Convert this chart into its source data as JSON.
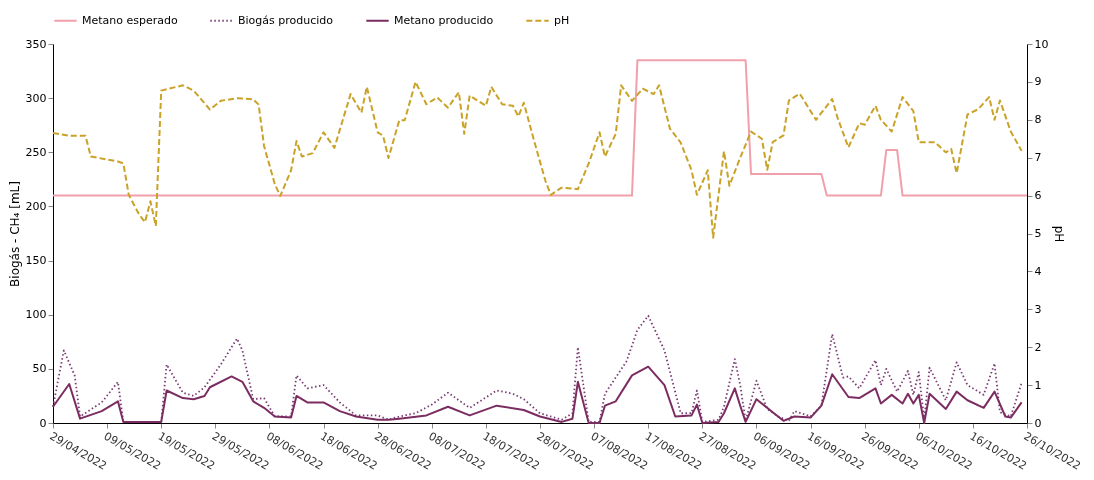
{
  "chart_data": {
    "type": "line",
    "ylabel": "Biogás - CH₄ [mL]",
    "y2label": "pH",
    "legend": "top",
    "xlim": [
      "2022-04-29",
      "2022-10-26"
    ],
    "xticks": [
      {
        "value": "2022-04-29",
        "label": "29/04/2022"
      },
      {
        "value": "2022-05-09",
        "label": "09/05/2022"
      },
      {
        "value": "2022-05-19",
        "label": "19/05/2022"
      },
      {
        "value": "2022-05-29",
        "label": "29/05/2022"
      },
      {
        "value": "2022-06-08",
        "label": "08/06/2022"
      },
      {
        "value": "2022-06-18",
        "label": "18/06/2022"
      },
      {
        "value": "2022-06-28",
        "label": "28/06/2022"
      },
      {
        "value": "2022-07-08",
        "label": "08/07/2022"
      },
      {
        "value": "2022-07-18",
        "label": "18/07/2022"
      },
      {
        "value": "2022-07-28",
        "label": "28/07/2022"
      },
      {
        "value": "2022-08-07",
        "label": "07/08/2022"
      },
      {
        "value": "2022-08-17",
        "label": "17/08/2022"
      },
      {
        "value": "2022-08-27",
        "label": "27/08/2022"
      },
      {
        "value": "2022-09-06",
        "label": "06/09/2022"
      },
      {
        "value": "2022-09-16",
        "label": "16/09/2022"
      },
      {
        "value": "2022-09-26",
        "label": "26/09/2022"
      },
      {
        "value": "2022-10-06",
        "label": "06/10/2022"
      },
      {
        "value": "2022-10-16",
        "label": "16/10/2022"
      },
      {
        "value": "2022-10-26",
        "label": "26/10/2022"
      }
    ],
    "ylim": [
      0,
      350
    ],
    "yticks": [
      0,
      50,
      100,
      150,
      200,
      250,
      300,
      350
    ],
    "y2lim": [
      0,
      10
    ],
    "y2ticks": [
      0,
      1,
      2,
      3,
      4,
      5,
      6,
      7,
      8,
      9,
      10
    ],
    "series": [
      {
        "name": "Metano esperado",
        "color": "#f0a0aa",
        "line_style": "solid",
        "x": [
          "2022-04-29",
          "2022-08-14",
          "2022-08-15",
          "2022-09-04",
          "2022-09-05",
          "2022-09-18",
          "2022-09-19",
          "2022-09-29",
          "2022-09-30",
          "2022-10-02",
          "2022-10-03",
          "2022-10-26"
        ],
        "values": [
          210,
          210,
          335,
          335,
          230,
          230,
          210,
          210,
          252,
          252,
          210,
          210
        ]
      },
      {
        "name": "Biogás producido",
        "color": "#7a3b72",
        "line_style": "dotted",
        "x": [
          "2022-04-29",
          "2022-05-01",
          "2022-05-03",
          "2022-05-04",
          "2022-05-08",
          "2022-05-11",
          "2022-05-12",
          "2022-05-19",
          "2022-05-20",
          "2022-05-23",
          "2022-05-25",
          "2022-05-27",
          "2022-05-30",
          "2022-06-02",
          "2022-06-03",
          "2022-06-05",
          "2022-06-07",
          "2022-06-09",
          "2022-06-12",
          "2022-06-13",
          "2022-06-15",
          "2022-06-18",
          "2022-06-21",
          "2022-06-24",
          "2022-06-28",
          "2022-06-30",
          "2022-07-02",
          "2022-07-05",
          "2022-07-08",
          "2022-07-11",
          "2022-07-15",
          "2022-07-20",
          "2022-07-23",
          "2022-07-25",
          "2022-07-28",
          "2022-08-01",
          "2022-08-03",
          "2022-08-04",
          "2022-08-06",
          "2022-08-08",
          "2022-08-09",
          "2022-08-13",
          "2022-08-15",
          "2022-08-17",
          "2022-08-20",
          "2022-08-23",
          "2022-08-25",
          "2022-08-26",
          "2022-08-27",
          "2022-08-30",
          "2022-08-31",
          "2022-09-02",
          "2022-09-03",
          "2022-09-04",
          "2022-09-06",
          "2022-09-08",
          "2022-09-10",
          "2022-09-12",
          "2022-09-13",
          "2022-09-16",
          "2022-09-18",
          "2022-09-20",
          "2022-09-22",
          "2022-09-23",
          "2022-09-25",
          "2022-09-28",
          "2022-09-29",
          "2022-09-30",
          "2022-10-02",
          "2022-10-04",
          "2022-10-05",
          "2022-10-06",
          "2022-10-07",
          "2022-10-08",
          "2022-10-11",
          "2022-10-13",
          "2022-10-15",
          "2022-10-18",
          "2022-10-20",
          "2022-10-21",
          "2022-10-23",
          "2022-10-25"
        ],
        "values": [
          15,
          67,
          44,
          6,
          19,
          38,
          1,
          1,
          54,
          28,
          25,
          33,
          54,
          78,
          67,
          22,
          23,
          6,
          6,
          44,
          32,
          35,
          19,
          7,
          7,
          3,
          6,
          9,
          17,
          28,
          14,
          30,
          27,
          22,
          9,
          3,
          9,
          70,
          1,
          1,
          27,
          57,
          86,
          99,
          67,
          9,
          9,
          30,
          1,
          3,
          15,
          59,
          35,
          2,
          39,
          13,
          6,
          2,
          11,
          6,
          16,
          82,
          42,
          43,
          32,
          58,
          35,
          50,
          29,
          48,
          26,
          47,
          3,
          51,
          21,
          56,
          35,
          26,
          55,
          10,
          6,
          37
        ]
      },
      {
        "name": "Metano producido",
        "color": "#7b2d62",
        "line_style": "solid",
        "x": [
          "2022-04-29",
          "2022-05-02",
          "2022-05-04",
          "2022-05-08",
          "2022-05-11",
          "2022-05-12",
          "2022-05-19",
          "2022-05-20",
          "2022-05-23",
          "2022-05-25",
          "2022-05-27",
          "2022-05-28",
          "2022-06-01",
          "2022-06-03",
          "2022-06-05",
          "2022-06-07",
          "2022-06-09",
          "2022-06-12",
          "2022-06-13",
          "2022-06-15",
          "2022-06-18",
          "2022-06-21",
          "2022-06-24",
          "2022-06-28",
          "2022-06-30",
          "2022-07-02",
          "2022-07-07",
          "2022-07-11",
          "2022-07-15",
          "2022-07-20",
          "2022-07-25",
          "2022-07-28",
          "2022-08-01",
          "2022-08-03",
          "2022-08-04",
          "2022-08-06",
          "2022-08-08",
          "2022-08-09",
          "2022-08-11",
          "2022-08-14",
          "2022-08-17",
          "2022-08-20",
          "2022-08-22",
          "2022-08-25",
          "2022-08-26",
          "2022-08-27",
          "2022-08-30",
          "2022-08-31",
          "2022-09-02",
          "2022-09-03",
          "2022-09-04",
          "2022-09-06",
          "2022-09-09",
          "2022-09-11",
          "2022-09-13",
          "2022-09-16",
          "2022-09-18",
          "2022-09-20",
          "2022-09-23",
          "2022-09-25",
          "2022-09-28",
          "2022-09-29",
          "2022-10-01",
          "2022-10-03",
          "2022-10-04",
          "2022-10-05",
          "2022-10-06",
          "2022-10-07",
          "2022-10-08",
          "2022-10-11",
          "2022-10-13",
          "2022-10-15",
          "2022-10-18",
          "2022-10-20",
          "2022-10-22",
          "2022-10-23",
          "2022-10-25"
        ],
        "values": [
          15,
          36,
          4,
          11,
          20,
          1,
          1,
          30,
          23,
          22,
          25,
          33,
          43,
          38,
          20,
          14,
          6,
          5,
          25,
          19,
          19,
          11,
          6,
          3,
          3,
          4,
          7,
          15,
          7,
          16,
          12,
          6,
          1,
          4,
          38,
          0,
          0,
          16,
          20,
          44,
          52,
          35,
          6,
          7,
          17,
          0,
          1,
          9,
          32,
          16,
          1,
          22,
          10,
          2,
          6,
          5,
          16,
          45,
          24,
          23,
          32,
          18,
          26,
          18,
          27,
          18,
          26,
          0,
          27,
          13,
          29,
          21,
          14,
          29,
          6,
          5,
          19
        ]
      },
      {
        "name": "pH",
        "color": "#c9a227",
        "line_style": "dashed",
        "axis": "y2",
        "x": [
          "2022-04-29",
          "2022-05-02",
          "2022-05-05",
          "2022-05-06",
          "2022-05-11",
          "2022-05-12",
          "2022-05-13",
          "2022-05-15",
          "2022-05-16",
          "2022-05-17",
          "2022-05-18",
          "2022-05-19",
          "2022-05-23",
          "2022-05-25",
          "2022-05-28",
          "2022-05-30",
          "2022-06-02",
          "2022-06-05",
          "2022-06-06",
          "2022-06-07",
          "2022-06-09",
          "2022-06-10",
          "2022-06-12",
          "2022-06-13",
          "2022-06-14",
          "2022-06-16",
          "2022-06-18",
          "2022-06-20",
          "2022-06-23",
          "2022-06-25",
          "2022-06-26",
          "2022-06-28",
          "2022-06-29",
          "2022-06-30",
          "2022-07-02",
          "2022-07-03",
          "2022-07-05",
          "2022-07-07",
          "2022-07-09",
          "2022-07-11",
          "2022-07-13",
          "2022-07-14",
          "2022-07-15",
          "2022-07-18",
          "2022-07-19",
          "2022-07-21",
          "2022-07-23",
          "2022-07-24",
          "2022-07-25",
          "2022-07-27",
          "2022-07-29",
          "2022-07-30",
          "2022-08-01",
          "2022-08-04",
          "2022-08-06",
          "2022-08-08",
          "2022-08-09",
          "2022-08-11",
          "2022-08-12",
          "2022-08-14",
          "2022-08-16",
          "2022-08-18",
          "2022-08-19",
          "2022-08-21",
          "2022-08-23",
          "2022-08-25",
          "2022-08-26",
          "2022-08-28",
          "2022-08-29",
          "2022-08-31",
          "2022-09-01",
          "2022-09-03",
          "2022-09-05",
          "2022-09-07",
          "2022-09-08",
          "2022-09-09",
          "2022-09-11",
          "2022-09-12",
          "2022-09-14",
          "2022-09-17",
          "2022-09-20",
          "2022-09-21",
          "2022-09-23",
          "2022-09-25",
          "2022-09-26",
          "2022-09-28",
          "2022-09-29",
          "2022-10-01",
          "2022-10-03",
          "2022-10-05",
          "2022-10-06",
          "2022-10-09",
          "2022-10-11",
          "2022-10-12",
          "2022-10-13",
          "2022-10-15",
          "2022-10-17",
          "2022-10-19",
          "2022-10-20",
          "2022-10-21",
          "2022-10-23",
          "2022-10-25"
        ],
        "values": [
          7.65,
          7.58,
          7.58,
          7.03,
          6.9,
          6.85,
          6.02,
          5.48,
          5.3,
          5.85,
          5.2,
          8.77,
          8.91,
          8.77,
          8.27,
          8.5,
          8.57,
          8.54,
          8.4,
          7.31,
          6.3,
          5.99,
          6.67,
          7.44,
          7.03,
          7.12,
          7.67,
          7.26,
          8.68,
          8.19,
          8.87,
          7.67,
          7.58,
          6.99,
          7.99,
          7.99,
          9.0,
          8.41,
          8.59,
          8.32,
          8.73,
          7.63,
          8.64,
          8.37,
          8.87,
          8.41,
          8.37,
          8.09,
          8.45,
          7.4,
          6.39,
          6.02,
          6.21,
          6.17,
          6.85,
          7.67,
          7.03,
          7.63,
          8.91,
          8.5,
          8.82,
          8.68,
          8.91,
          7.77,
          7.4,
          6.67,
          6.02,
          6.67,
          4.89,
          7.17,
          6.26,
          7.0,
          7.69,
          7.5,
          6.68,
          7.41,
          7.59,
          8.51,
          8.69,
          8.0,
          8.55,
          8.05,
          7.27,
          7.91,
          7.87,
          8.37,
          8.0,
          7.69,
          8.6,
          8.23,
          7.41,
          7.41,
          7.14,
          7.23,
          6.59,
          8.14,
          8.28,
          8.6,
          8.0,
          8.51,
          7.69,
          7.18
        ]
      }
    ]
  }
}
